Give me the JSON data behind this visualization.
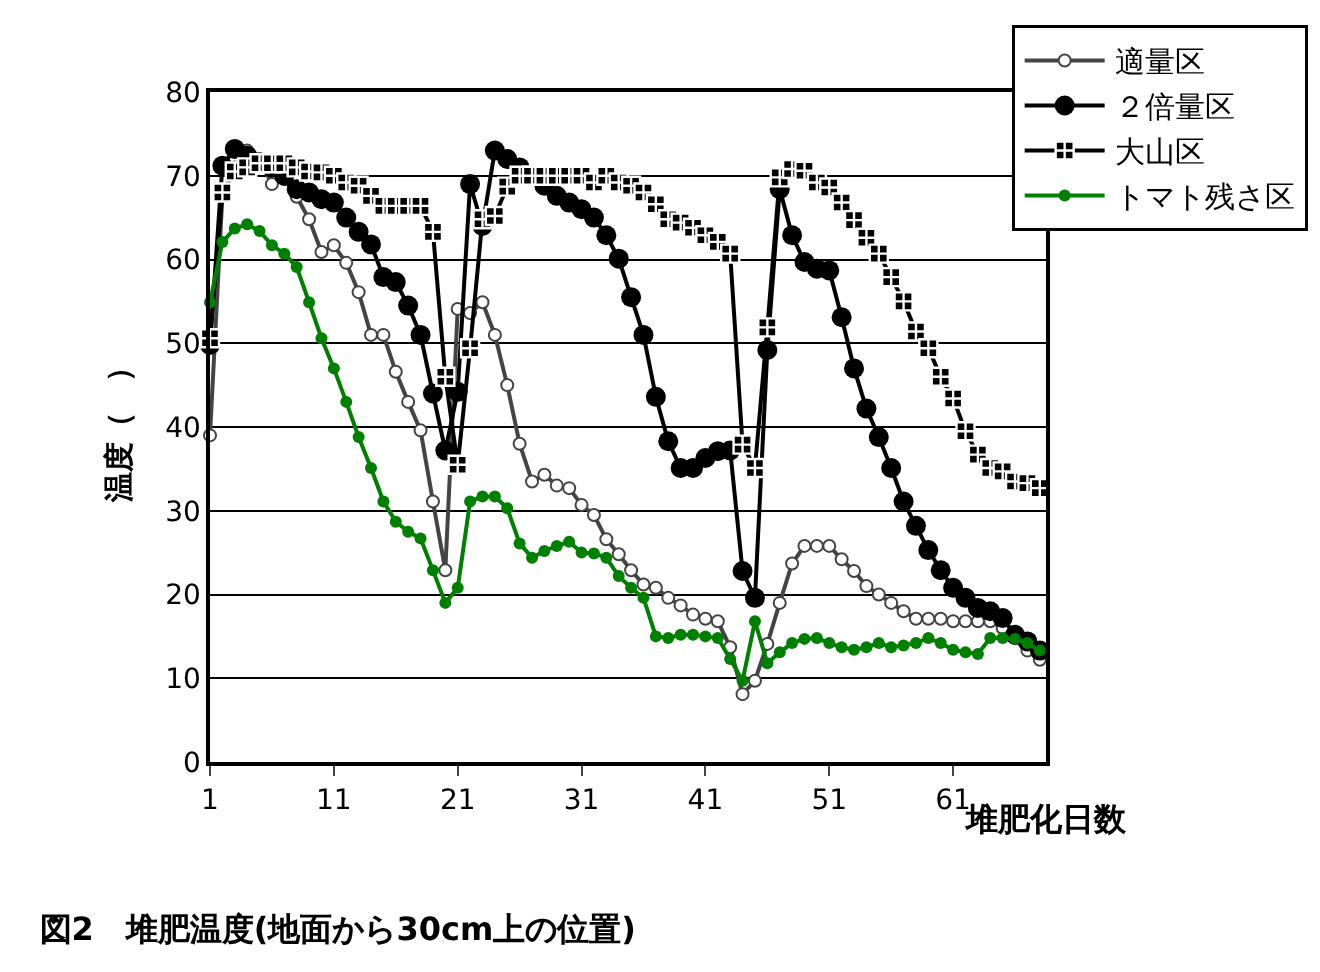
{
  "chart_data": {
    "type": "line",
    "title": "図2　堆肥温度(地面から30cm上の位置)",
    "xlabel": "堆肥化日数",
    "ylabel": "温度（　）",
    "x": [
      1,
      2,
      3,
      4,
      5,
      6,
      7,
      8,
      9,
      10,
      11,
      12,
      13,
      14,
      15,
      16,
      17,
      18,
      19,
      20,
      21,
      22,
      23,
      24,
      25,
      26,
      27,
      28,
      29,
      30,
      31,
      32,
      33,
      34,
      35,
      36,
      37,
      38,
      39,
      40,
      41,
      42,
      43,
      44,
      45,
      46,
      47,
      48,
      49,
      50,
      51,
      52,
      53,
      54,
      55,
      56,
      57,
      58,
      59,
      60,
      61,
      62,
      63,
      64,
      65,
      66,
      67,
      68
    ],
    "xlim": [
      1,
      68.5
    ],
    "xticks": [
      1,
      11,
      21,
      31,
      41,
      51,
      61
    ],
    "ylim": [
      0,
      80
    ],
    "yticks": [
      0,
      10,
      20,
      30,
      40,
      50,
      60,
      70,
      80
    ],
    "grid": "y",
    "legend": "top right",
    "line_style": "solid",
    "series": [
      {
        "name": "適量区",
        "color": "#444444",
        "marker": "circle-open",
        "values": [
          39,
          67.6,
          71,
          73,
          72,
          69,
          69.6,
          67.5,
          64.8,
          60.9,
          61.7,
          59.6,
          56.1,
          51,
          51,
          46.6,
          43,
          39.6,
          31.1,
          22.9,
          54.1,
          53.6,
          54.9,
          51,
          45,
          38,
          33.5,
          34.3,
          33,
          32.7,
          30.7,
          29.5,
          26.6,
          24.8,
          22.9,
          21.2,
          20.8,
          19.6,
          18.7,
          17.6,
          17.1,
          16.8,
          13.7,
          8.1,
          9.7,
          14.1,
          19,
          23.7,
          25.8,
          25.8,
          25.8,
          24.2,
          22.8,
          21,
          20,
          19,
          18,
          17.1,
          17.1,
          17.1,
          16.8,
          16.8,
          16.8,
          16.8,
          16,
          14.8,
          13.3,
          12.2
        ]
      },
      {
        "name": "２倍量区",
        "color": "#000000",
        "marker": "circle",
        "values": [
          49.8,
          71.2,
          73.2,
          72.4,
          71.5,
          71,
          70,
          68.4,
          68,
          67.2,
          66.8,
          65,
          63.3,
          61.8,
          57.9,
          57.3,
          54.5,
          51,
          44,
          37.2,
          44.2,
          69,
          64,
          73,
          72,
          71,
          70,
          68.8,
          67.6,
          66.8,
          66,
          65,
          62.9,
          60.1,
          55.5,
          51,
          43.6,
          38.3,
          35.1,
          35.1,
          36.3,
          37.1,
          37.2,
          22.8,
          19.6,
          49.2,
          68.4,
          62.9,
          59.7,
          58.9,
          58.7,
          53.1,
          47,
          42.2,
          38.8,
          35.1,
          31.1,
          28.2,
          25.3,
          22.9,
          20.8,
          19.6,
          18.4,
          18,
          17.2,
          15.2,
          14.4,
          13.3
        ]
      },
      {
        "name": "大山区",
        "color": "#000000",
        "marker": "cross",
        "values": [
          50.6,
          68,
          70.5,
          71,
          71.5,
          71.5,
          71.5,
          71,
          70.5,
          70.4,
          70,
          69.2,
          68.8,
          67.6,
          66.4,
          66.4,
          66.4,
          66.4,
          63.3,
          46,
          35.5,
          49.4,
          64.8,
          65.2,
          68.7,
          70,
          70,
          70,
          70,
          70,
          70,
          69.2,
          70,
          69.2,
          68.8,
          68,
          66.6,
          64.8,
          64.4,
          63.8,
          62.9,
          62.1,
          60.7,
          37.9,
          35.1,
          51.9,
          69.8,
          70.8,
          70.6,
          69.2,
          68.6,
          66.8,
          64.7,
          62.6,
          60.7,
          57.9,
          55,
          51.4,
          49.4,
          46,
          43.4,
          39.5,
          36.7,
          35.1,
          34.7,
          33.5,
          33.3,
          32.7
        ]
      },
      {
        "name": "トマト残さ区",
        "color": "#008000",
        "marker": "circle",
        "values": [
          54.9,
          62.1,
          63.7,
          64.2,
          63.4,
          61.7,
          60.7,
          59.1,
          54.9,
          50.6,
          47,
          43,
          38.8,
          35.1,
          31.1,
          28.7,
          27.5,
          26.7,
          22.9,
          19,
          20.8,
          31.1,
          31.7,
          31.7,
          30.3,
          26.1,
          24.4,
          25.2,
          25.8,
          26.3,
          25,
          24.9,
          24.4,
          22.2,
          20.8,
          19.6,
          15,
          14.8,
          15.2,
          15.2,
          15,
          14.8,
          12.3,
          9.7,
          16.8,
          11.8,
          13.1,
          14.2,
          14.7,
          14.8,
          14.2,
          13.7,
          13.4,
          13.7,
          14.2,
          13.7,
          13.9,
          14.2,
          14.8,
          14.2,
          13.4,
          13.1,
          12.9,
          14.8,
          14.8,
          14.7,
          14.2,
          13.3
        ]
      }
    ]
  }
}
